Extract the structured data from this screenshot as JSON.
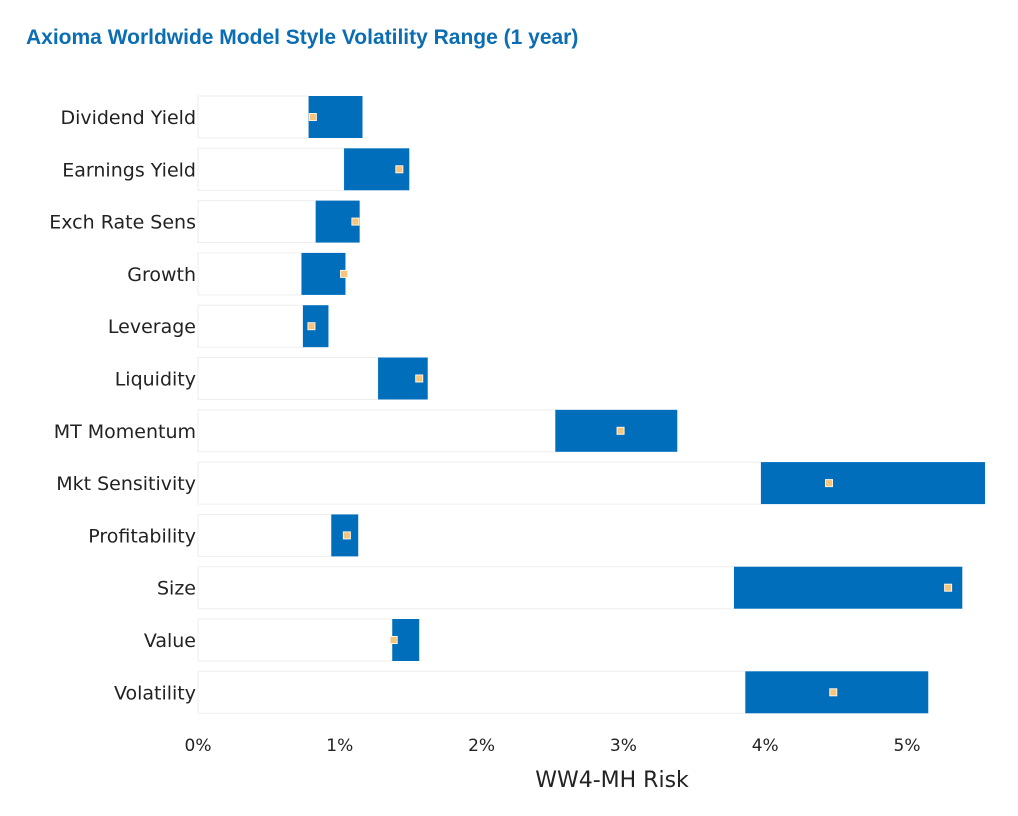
{
  "page": {
    "title": "Axioma Worldwide Model Style Volatility Range (1 year)"
  },
  "colors": {
    "title": "#0b6db3",
    "range_bar": "#006ebb",
    "base_bar_fill": "#ffffff",
    "base_bar_stroke": "#eeeeee",
    "marker_fill": "#f7c47d",
    "marker_stroke": "#fff3df",
    "axis_text": "#222222"
  },
  "chart_data": {
    "type": "bar",
    "orientation": "horizontal",
    "title": "Axioma Worldwide Model Style Volatility Range (1 year)",
    "xlabel": "WW4-MH Risk",
    "ylabel": "",
    "xlim": [
      0,
      5.6
    ],
    "x_ticks": [
      0,
      1,
      2,
      3,
      4,
      5
    ],
    "x_tick_labels": [
      "0%",
      "1%",
      "2%",
      "3%",
      "4%",
      "5%"
    ],
    "grid": false,
    "legend": "none",
    "categories": [
      "Dividend Yield",
      "Earnings Yield",
      "Exch Rate Sens",
      "Growth",
      "Leverage",
      "Liquidity",
      "MT Momentum",
      "Mkt Sensitivity",
      "Profitability",
      "Size",
      "Value",
      "Volatility"
    ],
    "series": [
      {
        "role": "range_min",
        "values": [
          0.78,
          1.03,
          0.83,
          0.73,
          0.74,
          1.27,
          2.52,
          3.97,
          0.94,
          3.78,
          1.37,
          3.86
        ]
      },
      {
        "role": "range_max",
        "values": [
          1.16,
          1.49,
          1.14,
          1.04,
          0.92,
          1.62,
          3.38,
          5.55,
          1.13,
          5.39,
          1.56,
          5.15
        ]
      },
      {
        "role": "current",
        "values": [
          0.81,
          1.42,
          1.11,
          1.03,
          0.8,
          1.56,
          2.98,
          4.45,
          1.05,
          5.29,
          1.38,
          4.48
        ]
      }
    ]
  }
}
